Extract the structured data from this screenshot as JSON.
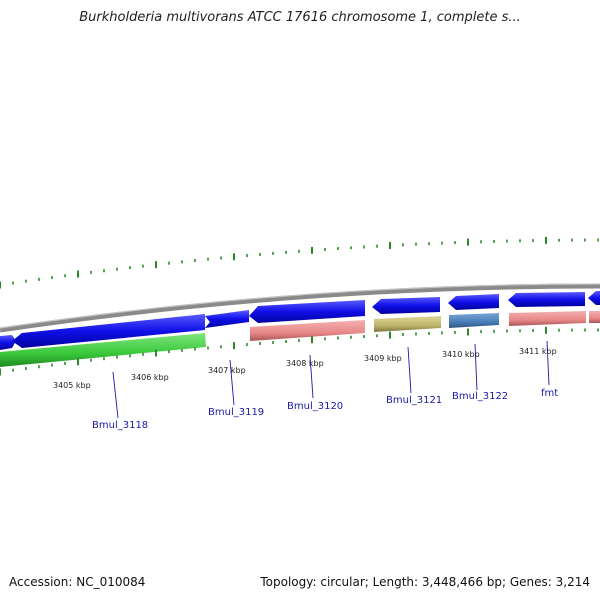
{
  "title": "Burkholderia multivorans ATCC 17616 chromosome 1, complete s...",
  "footer": {
    "accession": "Accession: NC_010084",
    "summary": "Topology: circular; Length: 3,448,466 bp; Genes: 3,214"
  },
  "ticks": [
    {
      "label": "3405 kbp"
    },
    {
      "label": "3406 kbp"
    },
    {
      "label": "3407 kbp"
    },
    {
      "label": "3408 kbp"
    },
    {
      "label": "3409 kbp"
    },
    {
      "label": "3410 kbp"
    },
    {
      "label": "3411 kbp"
    }
  ],
  "genes": [
    {
      "name": "Bmul_3118"
    },
    {
      "name": "Bmul_3119"
    },
    {
      "name": "Bmul_3120"
    },
    {
      "name": "Bmul_3121"
    },
    {
      "name": "Bmul_3122"
    },
    {
      "name": "fmt"
    }
  ],
  "colors": {
    "cds_blue": "#1010e8",
    "gene_green": "#3ac83a",
    "gene_pink": "#e88888",
    "gene_olive": "#bdb56a",
    "gene_steel": "#4a7db8",
    "backbone": "#909090",
    "tick_green": "#2a8a2a",
    "label_blue": "#1a1aa8"
  }
}
